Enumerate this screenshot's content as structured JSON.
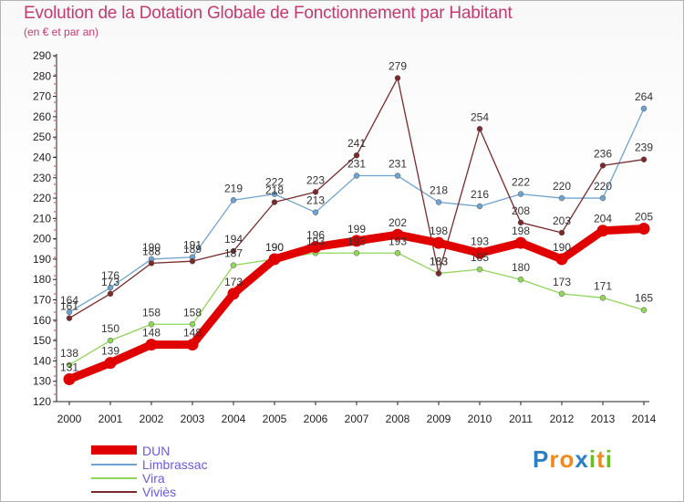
{
  "title": "Evolution de la Dotation Globale de Fonctionnement par Habitant",
  "subtitle": "(en € et par an)",
  "brand": {
    "letters": [
      "P",
      "r",
      "o",
      "x",
      "i",
      "t",
      "i"
    ],
    "colors": [
      "#2b7fc5",
      "#f08a1c",
      "#f08a1c",
      "#2b7fc5",
      "#6cbb2f",
      "#f08a1c",
      "#6cbb2f"
    ]
  },
  "chart_data": {
    "type": "line",
    "title": "Evolution de la Dotation Globale de Fonctionnement par Habitant",
    "ylabel": "(en € et par an)",
    "xlabel": "",
    "ylim": [
      120,
      290
    ],
    "ytick_step": 10,
    "grid": false,
    "legend": "bottom-left",
    "x": [
      "2000",
      "2001",
      "2002",
      "2003",
      "2004",
      "2005",
      "2006",
      "2007",
      "2008",
      "2009",
      "2010",
      "2011",
      "2012",
      "2013",
      "2014"
    ],
    "series": [
      {
        "name": "DUN",
        "color": "#e00000",
        "style": "thick",
        "values": [
          131,
          139,
          148,
          148,
          173,
          190,
          196,
          199,
          202,
          198,
          193,
          198,
          190,
          204,
          205
        ]
      },
      {
        "name": "Limbrassac",
        "color": "#6fa3cf",
        "style": "thin",
        "values": [
          164,
          176,
          190,
          191,
          219,
          222,
          213,
          231,
          231,
          218,
          216,
          222,
          220,
          220,
          264
        ]
      },
      {
        "name": "Vira",
        "color": "#8fd65a",
        "style": "thin",
        "values": [
          138,
          150,
          158,
          158,
          187,
          190,
          193,
          193,
          193,
          183,
          185,
          180,
          173,
          171,
          165
        ]
      },
      {
        "name": "Viviès",
        "color": "#7a2a2a",
        "style": "thin",
        "values": [
          161,
          173,
          188,
          189,
          194,
          218,
          223,
          241,
          279,
          183,
          254,
          208,
          203,
          236,
          239
        ]
      }
    ]
  }
}
